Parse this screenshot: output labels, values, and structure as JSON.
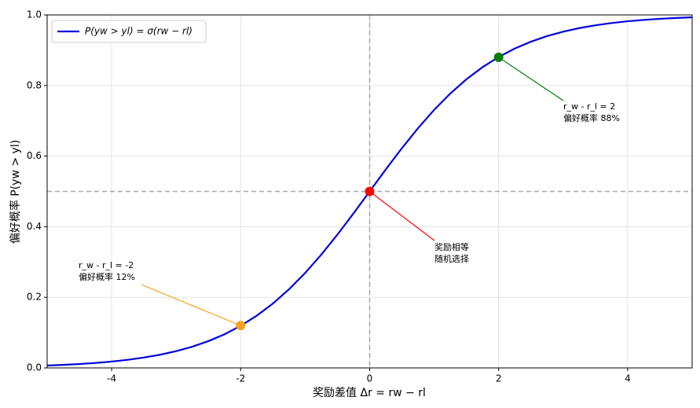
{
  "chart_data": {
    "type": "line",
    "xlabel": "奖励差值 Δr = rw − rl",
    "ylabel": "偏好概率 P(yw > yl)",
    "x": [
      -5,
      -4.75,
      -4.5,
      -4.25,
      -4,
      -3.75,
      -3.5,
      -3.25,
      -3,
      -2.75,
      -2.5,
      -2.25,
      -2,
      -1.75,
      -1.5,
      -1.25,
      -1,
      -0.75,
      -0.5,
      -0.25,
      0,
      0.25,
      0.5,
      0.75,
      1,
      1.25,
      1.5,
      1.75,
      2,
      2.25,
      2.5,
      2.75,
      3,
      3.25,
      3.5,
      3.75,
      4,
      4.25,
      4.5,
      4.75,
      5
    ],
    "series": [
      {
        "name": "P(yw > yl) = σ(rw − rl)",
        "color": "#0000dd",
        "values": [
          0.0067,
          0.0086,
          0.011,
          0.014,
          0.018,
          0.023,
          0.0293,
          0.0373,
          0.0474,
          0.0601,
          0.0759,
          0.0953,
          0.1192,
          0.148,
          0.1824,
          0.2227,
          0.2689,
          0.3208,
          0.3775,
          0.4378,
          0.5,
          0.5622,
          0.6225,
          0.6792,
          0.7311,
          0.7773,
          0.8176,
          0.852,
          0.8808,
          0.9047,
          0.9241,
          0.9399,
          0.9526,
          0.9627,
          0.9707,
          0.977,
          0.982,
          0.986,
          0.989,
          0.9914,
          0.9933
        ]
      }
    ],
    "markers": {
      "x": [
        -2,
        0,
        2
      ],
      "values": [
        0.12,
        0.5,
        0.88
      ],
      "colors": [
        "#f5a31a",
        "#ff0000",
        "#008000"
      ]
    },
    "annotations": [
      {
        "lines": [
          "r_w - r_l = -2",
          "偏好概率 12%"
        ],
        "color": "#f5a31a"
      },
      {
        "lines": [
          "奖励相等",
          "随机选择"
        ],
        "color": "#ff0000"
      },
      {
        "lines": [
          "r_w - r_l = 2",
          "偏好概率 88%"
        ],
        "color": "#008000"
      }
    ],
    "hline": 0.5,
    "vline": 0,
    "xlim": [
      -5,
      5
    ],
    "ylim": [
      0,
      1
    ],
    "xticks": [
      -4,
      -2,
      0,
      2,
      4
    ],
    "yticks": [
      {
        "value": 0,
        "label": "0.0"
      },
      0.2,
      0.4,
      0.6,
      0.8,
      {
        "value": 1,
        "label": "1.0"
      }
    ],
    "grid": true,
    "legend": "upper left"
  }
}
